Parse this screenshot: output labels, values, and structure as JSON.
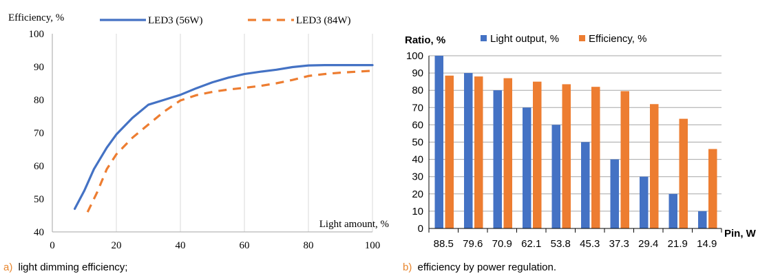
{
  "captions": {
    "a_letter": "a)",
    "a_text": "light dimming efficiency;",
    "b_letter": "b)",
    "b_text": "efficiency by power regulation."
  },
  "colors": {
    "blue": "#4472C4",
    "orange": "#ED7D31",
    "caption_letter": "#E8862E",
    "grid": "#D9D9D9",
    "axis_gray": "#A6A6A6",
    "text": "#000000"
  },
  "chart_data": [
    {
      "type": "line",
      "ylabel": "Efficiency, %",
      "xlabel": "Light amount, %",
      "xlim": [
        0,
        100
      ],
      "ylim": [
        40,
        100
      ],
      "xticks": [
        "0",
        "20",
        "40",
        "60",
        "80",
        "100"
      ],
      "yticks": [
        "40",
        "50",
        "60",
        "70",
        "80",
        "90",
        "100"
      ],
      "grid": "vertical",
      "legend": "top",
      "series": [
        {
          "name": "LED3 (56W)",
          "style": "solid",
          "color": "#4472C4",
          "x": [
            7,
            10,
            13,
            17,
            20,
            25,
            30,
            35,
            40,
            45,
            50,
            55,
            60,
            65,
            70,
            75,
            80,
            85,
            90,
            95,
            100
          ],
          "y": [
            47,
            52.5,
            59,
            65.5,
            69.5,
            74.5,
            78.5,
            80,
            81.5,
            83.5,
            85.3,
            86.7,
            87.8,
            88.5,
            89.1,
            89.9,
            90.4,
            90.5,
            90.5,
            90.5,
            90.5
          ]
        },
        {
          "name": "LED3 (84W)",
          "style": "dashed",
          "color": "#ED7D31",
          "x": [
            11,
            14,
            17,
            20,
            25,
            30,
            35,
            40,
            45,
            50,
            55,
            60,
            65,
            70,
            75,
            80,
            85,
            90,
            95,
            100
          ],
          "y": [
            46,
            52,
            59,
            63.5,
            68.5,
            72.5,
            76.5,
            79.8,
            81.4,
            82.4,
            83.1,
            83.6,
            84.2,
            85,
            86,
            87.2,
            87.8,
            88.2,
            88.5,
            88.8
          ]
        }
      ]
    },
    {
      "type": "bar",
      "ylabel": "Ratio, %",
      "xlabel": "Pin, W",
      "ylim": [
        0,
        100
      ],
      "yticks": [
        "0",
        "10",
        "20",
        "30",
        "40",
        "50",
        "60",
        "70",
        "80",
        "90",
        "100"
      ],
      "categories": [
        "88.5",
        "79.6",
        "70.9",
        "62.1",
        "53.8",
        "45.3",
        "37.3",
        "29.4",
        "21.9",
        "14.9"
      ],
      "grid": "horizontal",
      "legend": "top",
      "series": [
        {
          "name": "Light output, %",
          "color": "#4472C4",
          "values": [
            100,
            90,
            80,
            70,
            60,
            50,
            40,
            30,
            20,
            10
          ]
        },
        {
          "name": "Efficiency, %",
          "color": "#ED7D31",
          "values": [
            88.5,
            88,
            87,
            85,
            83.5,
            82,
            79.5,
            72,
            63.5,
            46
          ]
        }
      ]
    }
  ]
}
